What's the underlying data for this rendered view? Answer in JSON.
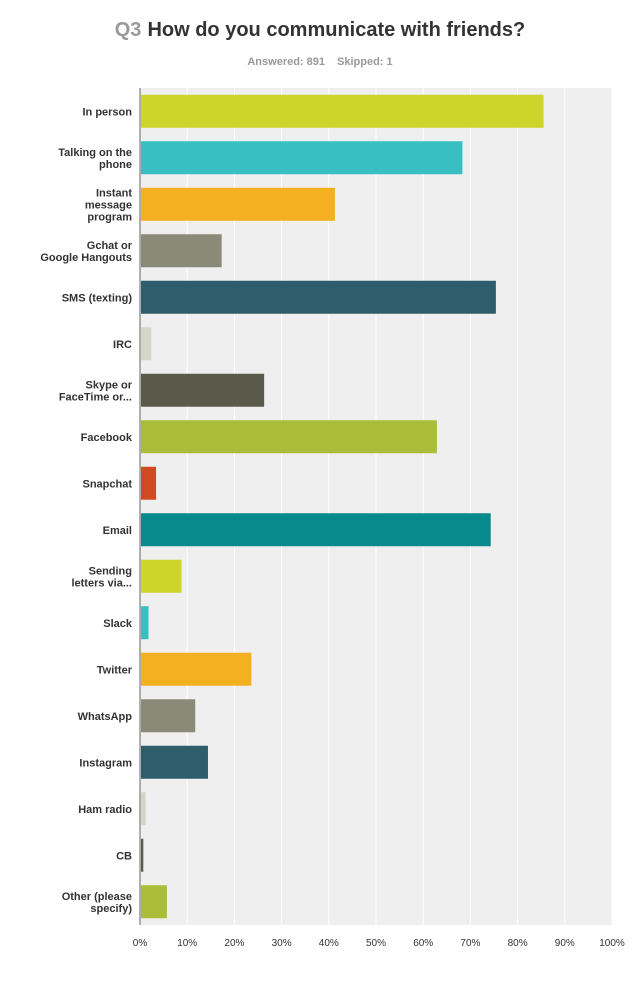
{
  "question": {
    "number": "Q3",
    "text": "How do you communicate with friends?",
    "answered_label": "Answered: 891",
    "skipped_label": "Skipped: 1"
  },
  "chart_data": {
    "type": "bar",
    "orientation": "horizontal",
    "title": "Q3 How do you communicate with friends?",
    "xlabel": "",
    "ylabel": "",
    "xlim": [
      0,
      100
    ],
    "x_ticks": [
      "0%",
      "10%",
      "20%",
      "30%",
      "40%",
      "50%",
      "60%",
      "70%",
      "80%",
      "90%",
      "100%"
    ],
    "grid": true,
    "categories": [
      [
        "In person"
      ],
      [
        "Talking on the",
        "phone"
      ],
      [
        "Instant",
        "message",
        "program"
      ],
      [
        "Gchat or",
        "Google Hangouts"
      ],
      [
        "SMS (texting)"
      ],
      [
        "IRC"
      ],
      [
        "Skype or",
        "FaceTime or..."
      ],
      [
        "Facebook"
      ],
      [
        "Snapchat"
      ],
      [
        "Email"
      ],
      [
        "Sending",
        "letters via..."
      ],
      [
        "Slack"
      ],
      [
        "Twitter"
      ],
      [
        "WhatsApp"
      ],
      [
        "Instagram"
      ],
      [
        "Ham radio"
      ],
      [
        "CB"
      ],
      [
        "Other (please",
        "specify)"
      ]
    ],
    "values": [
      85.5,
      68.3,
      41.3,
      17.3,
      75.4,
      2.4,
      26.3,
      62.9,
      3.4,
      74.3,
      8.8,
      1.8,
      23.6,
      11.7,
      14.4,
      1.2,
      0.7,
      5.7
    ],
    "colors": [
      "#cdd42a",
      "#37bfc2",
      "#f5b021",
      "#8a8a79",
      "#2e5d6c",
      "#d5d5c9",
      "#5a5a4a",
      "#a9bd38",
      "#d04a22",
      "#088a8c",
      "#cdd42a",
      "#37bfc2",
      "#f5b021",
      "#8a8a79",
      "#2e5d6c",
      "#d5d5c9",
      "#5a5a4a",
      "#a9bd38"
    ]
  }
}
